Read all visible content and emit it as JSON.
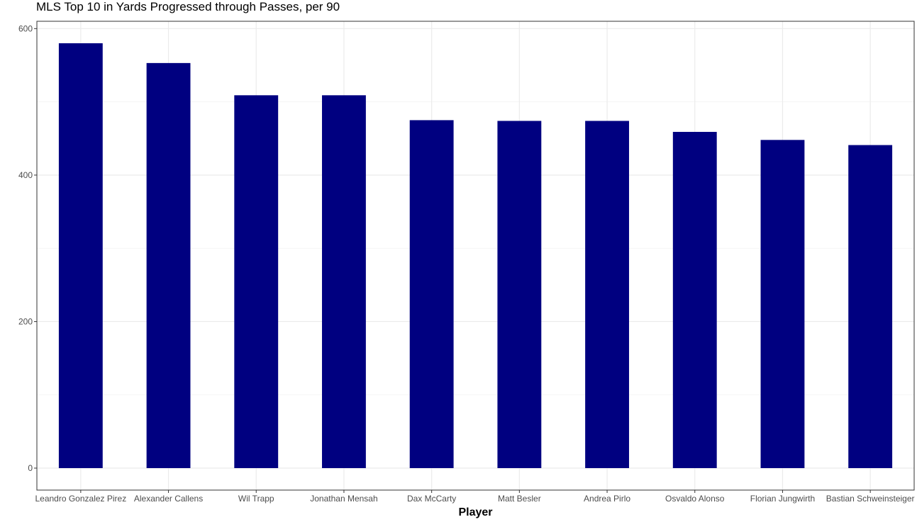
{
  "chart_data": {
    "type": "bar",
    "title": "MLS Top 10 in Yards Progressed through Passes, per 90",
    "xlabel": "Player",
    "ylabel": "",
    "categories": [
      "Leandro Gonzalez Pirez",
      "Alexander Callens",
      "Wil Trapp",
      "Jonathan Mensah",
      "Dax McCarty",
      "Matt Besler",
      "Andrea Pirlo",
      "Osvaldo Alonso",
      "Florian Jungwirth",
      "Bastian Schweinsteiger"
    ],
    "values": [
      580,
      553,
      509,
      509,
      475,
      474,
      474,
      459,
      448,
      441
    ],
    "ylim": [
      -30,
      610
    ],
    "yticks": [
      0,
      200,
      400,
      600
    ],
    "grid": true,
    "bar_color": "#000080"
  }
}
